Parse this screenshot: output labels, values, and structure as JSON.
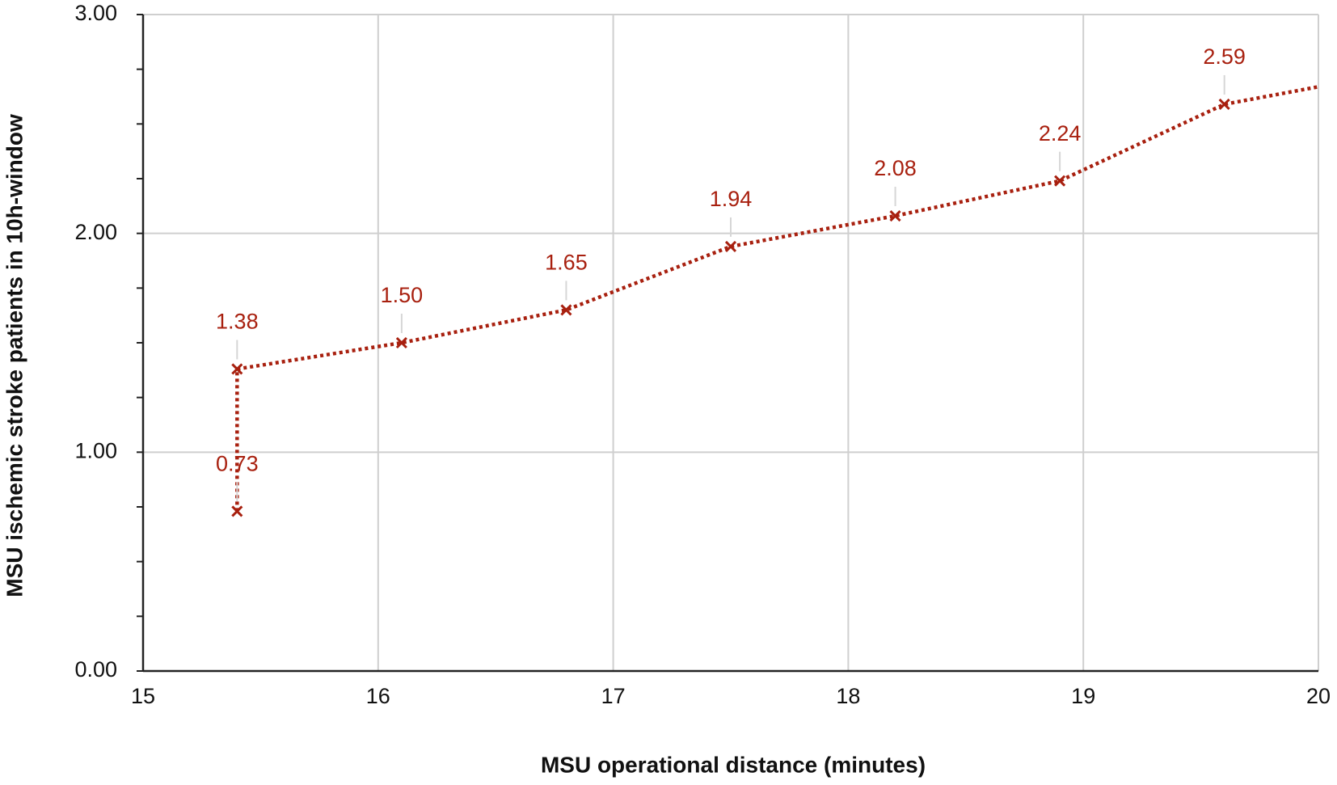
{
  "chart_data": {
    "type": "line",
    "xlabel": "MSU operational distance (minutes)",
    "ylabel": "MSU ischemic stroke patients in 10h-window",
    "x": [
      15.4,
      15.4,
      16.1,
      16.8,
      17.5,
      18.2,
      18.9,
      19.6,
      20.0
    ],
    "values": [
      0.73,
      1.38,
      1.5,
      1.65,
      1.94,
      2.08,
      2.24,
      2.59,
      2.67
    ],
    "value_labels": [
      "0.73",
      "1.38",
      "1.50",
      "1.65",
      "1.94",
      "2.08",
      "2.24",
      "2.59",
      null
    ],
    "color": "#a8200f",
    "xlim": [
      15,
      20
    ],
    "xticks": [
      15,
      16,
      17,
      18,
      19,
      20
    ],
    "ylim": [
      0,
      3
    ],
    "yticks": [
      {
        "value": 0,
        "label": "0.00"
      },
      {
        "value": 1,
        "label": "1.00"
      },
      {
        "value": 2,
        "label": "2.00"
      },
      {
        "value": 3,
        "label": "3.00"
      }
    ],
    "yminorticks": [
      0.25,
      0.5,
      0.75,
      1.25,
      1.5,
      1.75,
      2.25,
      2.5,
      2.75
    ],
    "grid": true
  }
}
